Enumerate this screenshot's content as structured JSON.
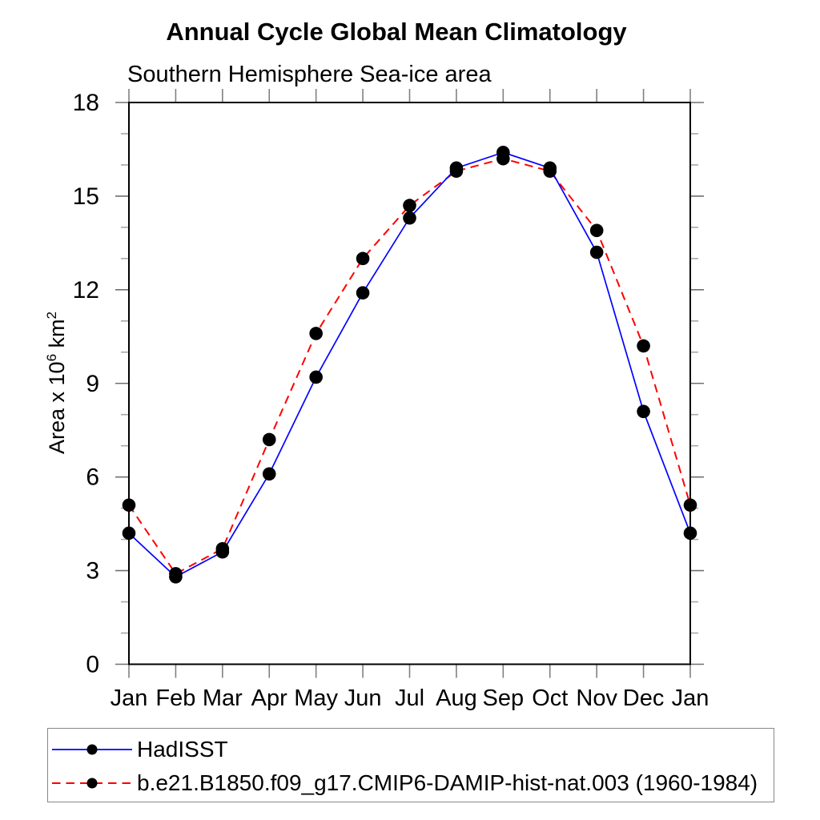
{
  "chart_data": {
    "type": "line",
    "title": "Annual Cycle Global Mean Climatology",
    "subtitle": "Southern Hemisphere Sea-ice area",
    "ylabel": "Area x 10^6 km^2",
    "ylabel_parts": {
      "base": "Area x 10",
      "exponent": "6",
      "unit": " km",
      "unit_exponent": "2"
    },
    "categories": [
      "Jan",
      "Feb",
      "Mar",
      "Apr",
      "May",
      "Jun",
      "Jul",
      "Aug",
      "Sep",
      "Oct",
      "Nov",
      "Dec",
      "Jan"
    ],
    "ylim": [
      0,
      18
    ],
    "y_axis": {
      "major_ticks": [
        0,
        3,
        6,
        9,
        12,
        15,
        18
      ],
      "minor_step": 1
    },
    "grid": false,
    "legend_position": "bottom-left-box",
    "marker_color": "#000000",
    "series": [
      {
        "name": "HadISST",
        "color": "#0000ff",
        "style": "solid",
        "marker": "black-dot",
        "values": [
          4.2,
          2.8,
          3.6,
          6.1,
          9.2,
          11.9,
          14.3,
          15.9,
          16.4,
          15.9,
          13.2,
          8.1,
          4.2
        ]
      },
      {
        "name": "b.e21.B1850.f09_g17.CMIP6-DAMIP-hist-nat.003 (1960-1984)",
        "color": "#ff0000",
        "style": "dashed",
        "marker": "black-dot",
        "values": [
          5.1,
          2.9,
          3.7,
          7.2,
          10.6,
          13.0,
          14.7,
          15.8,
          16.2,
          15.8,
          13.9,
          10.2,
          5.1
        ]
      }
    ]
  }
}
